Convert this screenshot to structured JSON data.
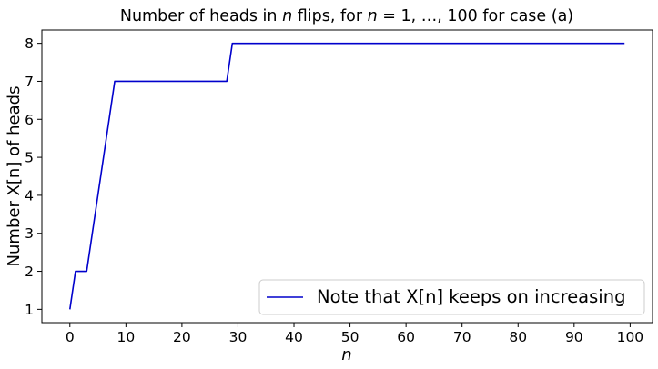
{
  "chart_data": {
    "type": "line",
    "title": "Number of heads in n flips, for n = 1, …, 100 for case (a)",
    "title_parts": {
      "prefix": "Number of heads in ",
      "n_var": "n",
      "middle": " flips, for ",
      "n_var2": "n",
      "eq": " = 1, …, 100 for case (a)"
    },
    "xlabel": "n",
    "ylabel": "Number X[n] of heads",
    "xlim": [
      -5,
      104
    ],
    "ylim": [
      0.65,
      8.35
    ],
    "xticks": [
      0,
      10,
      20,
      30,
      40,
      50,
      60,
      70,
      80,
      90,
      100
    ],
    "yticks": [
      1,
      2,
      3,
      4,
      5,
      6,
      7,
      8
    ],
    "grid": false,
    "legend_position": "lower right",
    "series": [
      {
        "name": "Note that X[n] keeps on increasing",
        "color": "#0000cc",
        "x": [
          0,
          1,
          2,
          3,
          8,
          28,
          29,
          99
        ],
        "y": [
          1,
          2,
          2,
          2,
          7,
          7,
          8,
          8
        ]
      }
    ]
  }
}
